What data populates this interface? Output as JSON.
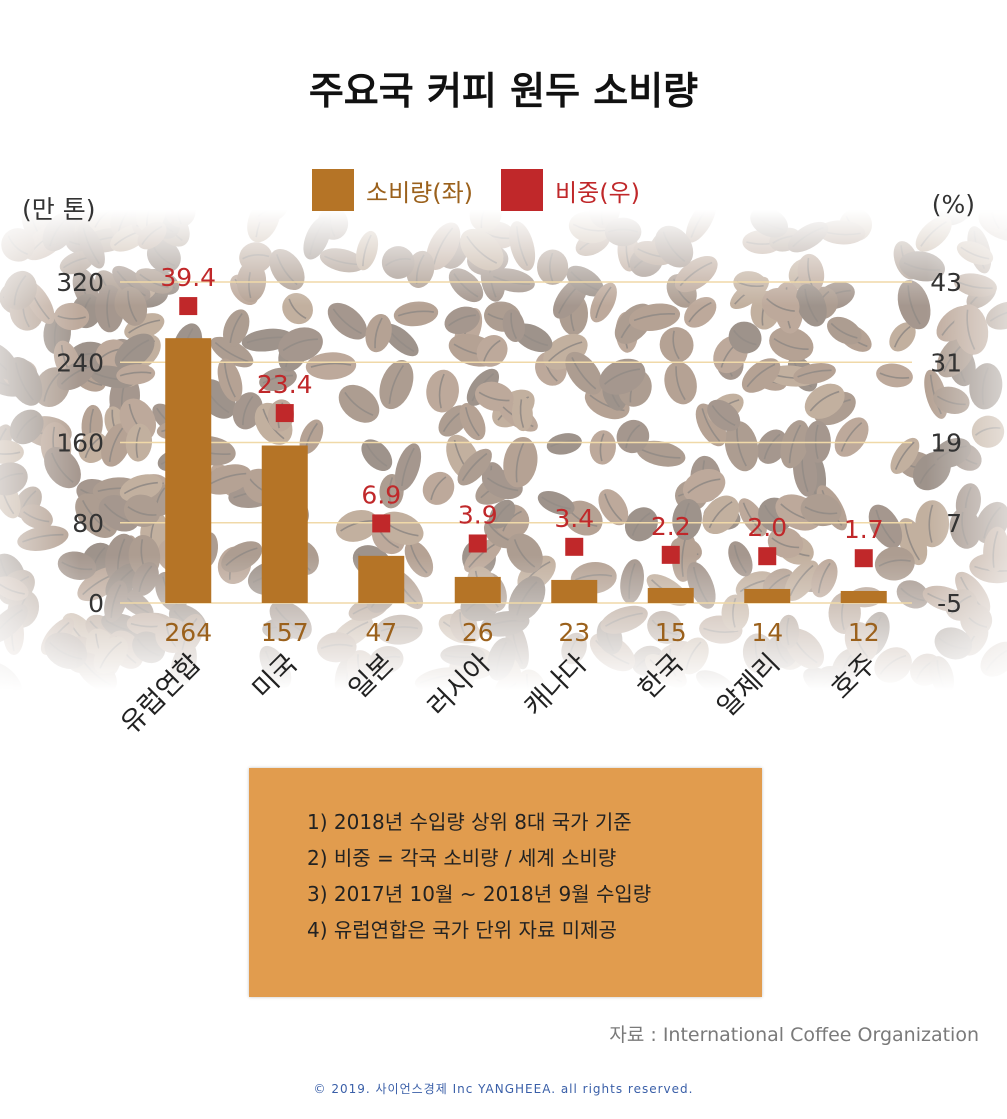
{
  "title": "주요국 커피 원두 소비량",
  "legend": {
    "consumption": "소비량(좌)",
    "share": "비중(우)"
  },
  "units": {
    "left": "(만 톤)",
    "right": "(%)"
  },
  "colors": {
    "consumption": "#b57426",
    "share": "#c0282a",
    "note_box": "#e19c4e",
    "gridline": "#f0d9a8"
  },
  "chart_data": {
    "type": "bar",
    "categories": [
      "유럽연합",
      "미국",
      "일본",
      "러시아",
      "캐나다",
      "한국",
      "알제리",
      "호주"
    ],
    "series": [
      {
        "name": "소비량(좌)",
        "type": "bar",
        "axis": "left",
        "values": [
          264,
          157,
          47,
          26,
          23,
          15,
          14,
          12
        ],
        "labels": [
          "264",
          "157",
          "47",
          "26",
          "23",
          "15",
          "14",
          "12"
        ]
      },
      {
        "name": "비중(우)",
        "type": "scatter",
        "axis": "right",
        "values": [
          39.4,
          23.4,
          6.9,
          3.9,
          3.4,
          2.2,
          2.0,
          1.7
        ],
        "labels": [
          "39.4",
          "23.4",
          "6.9",
          "3.9",
          "3.4",
          "2.2",
          "2.0",
          "1.7"
        ]
      }
    ],
    "y_left": {
      "ticks": [
        "0",
        "80",
        "160",
        "240",
        "320"
      ],
      "min": 0,
      "max": 320
    },
    "y_right": {
      "ticks": [
        "-5",
        "7",
        "19",
        "31",
        "43"
      ],
      "min": -5,
      "max": 43
    },
    "legend_position": "top-center",
    "grid": true
  },
  "notes": [
    "1) 2018년 수입량 상위 8대 국가 기준",
    "2) 비중 = 각국 소비량 / 세계 소비량",
    "3) 2017년 10월 ~ 2018년 9월 수입량",
    "4) 유럽연합은 국가 단위 자료 미제공"
  ],
  "source": "자료 : International Coffee Organization",
  "copyright": "© 2019. 사이언스경제 Inc YANGHEEA. all rights reserved."
}
